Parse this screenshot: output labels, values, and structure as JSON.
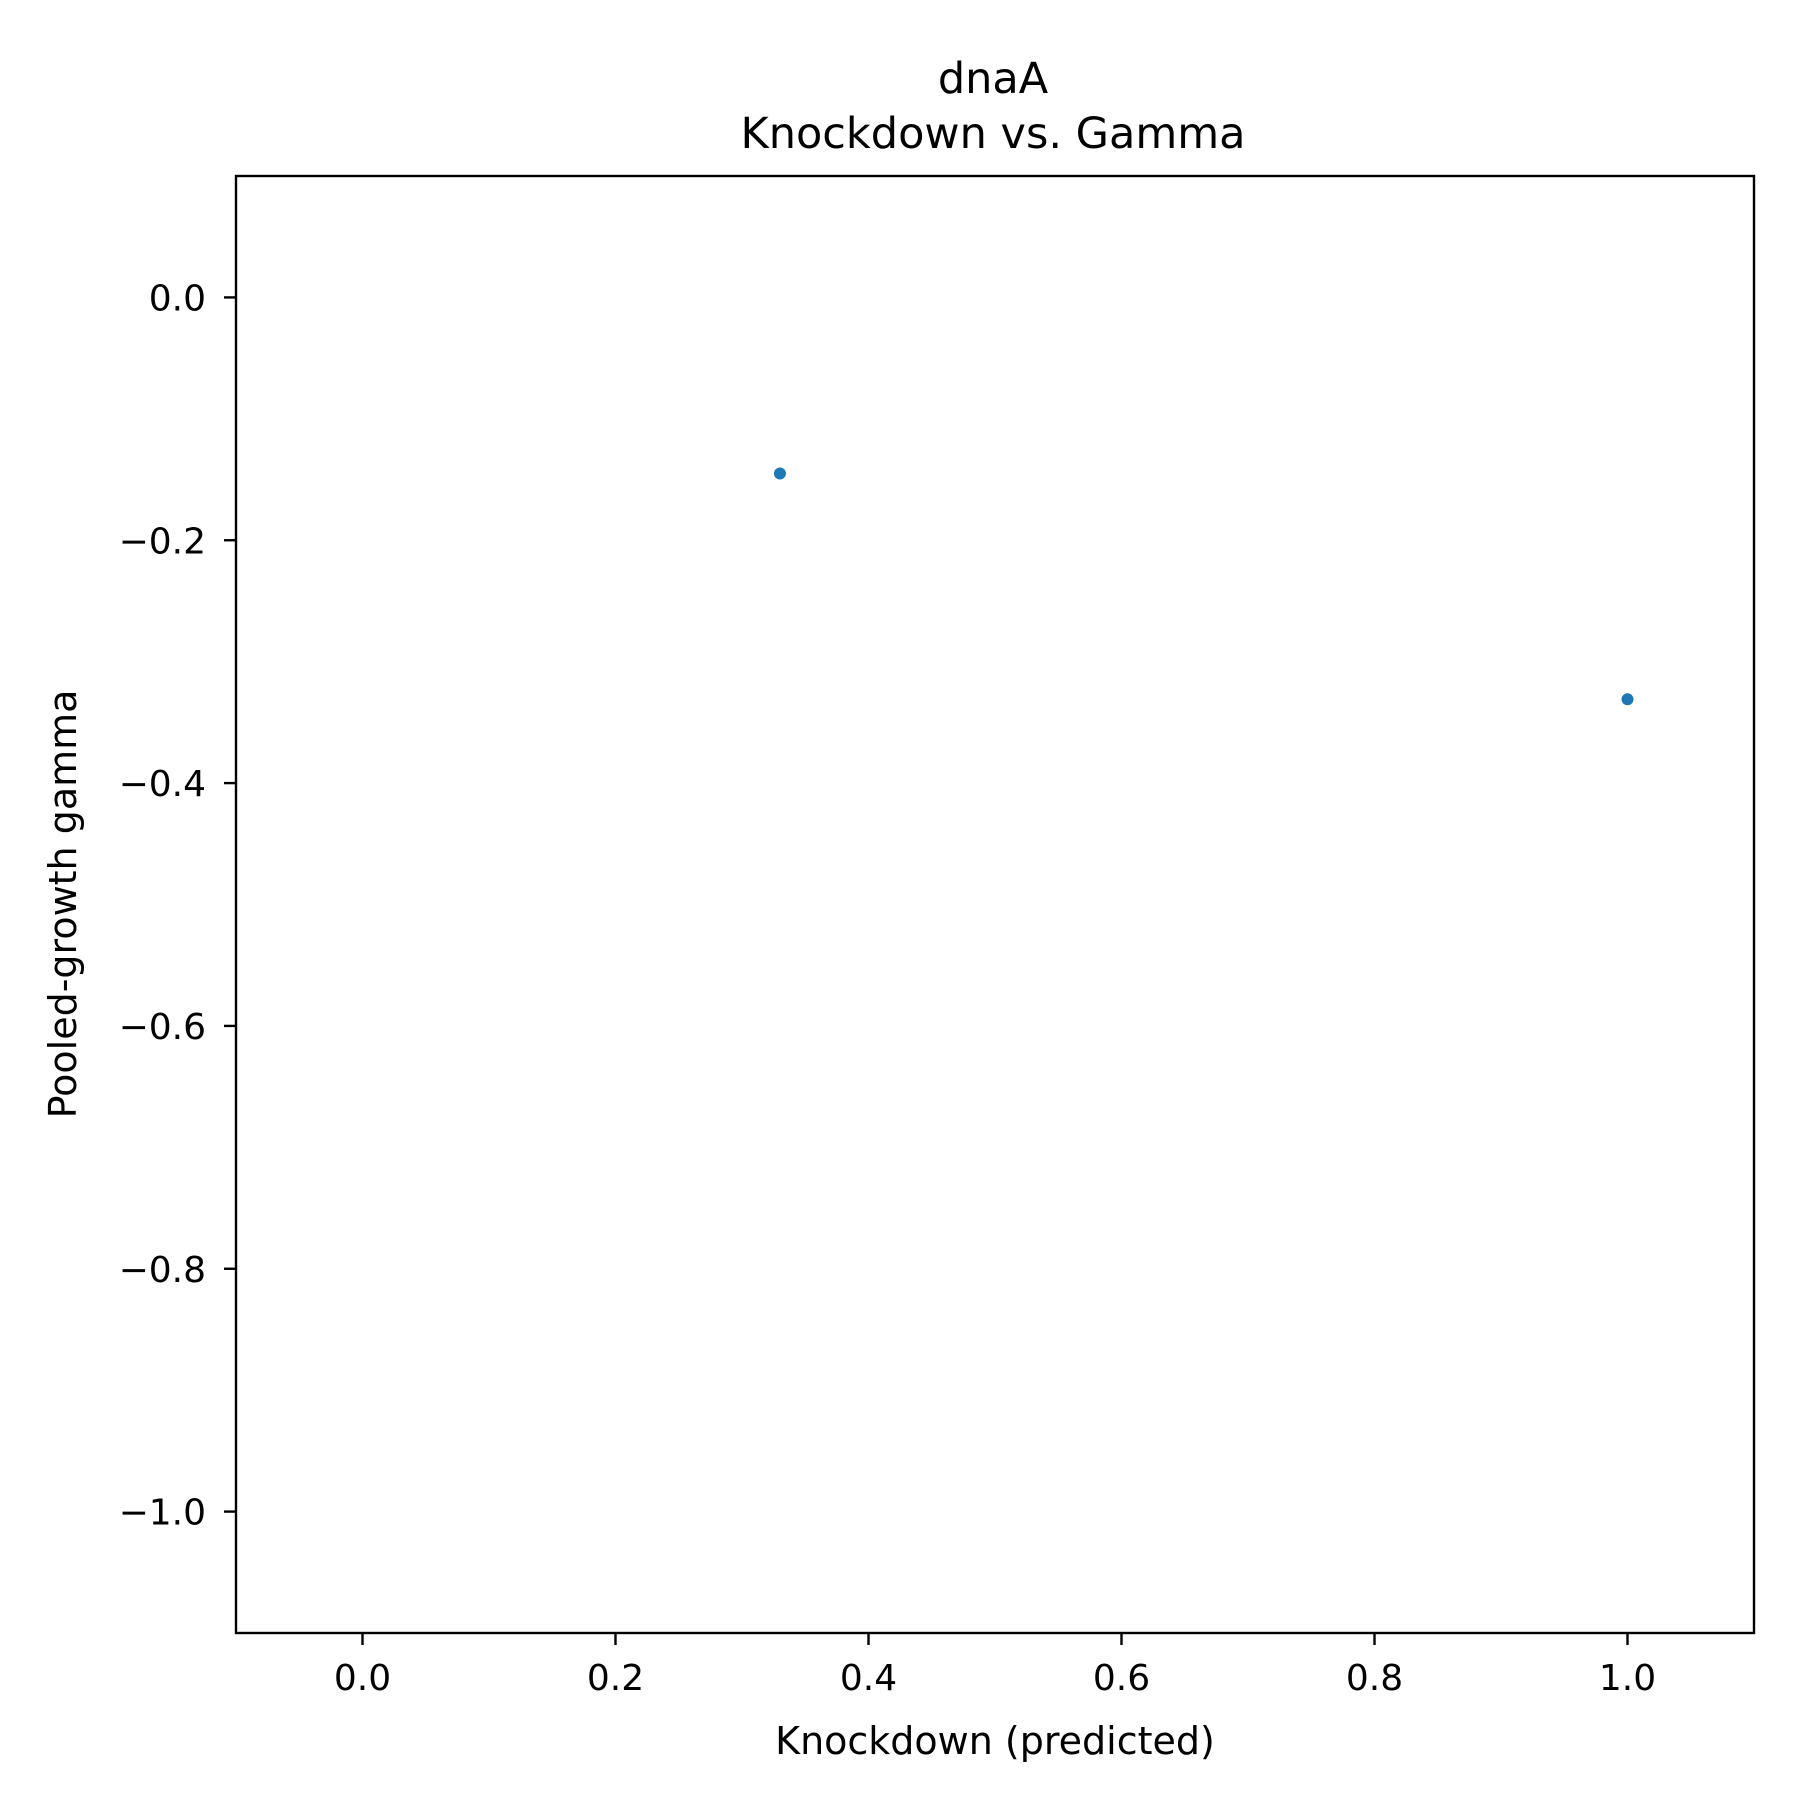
{
  "chart_data": {
    "type": "scatter",
    "title": "dnaA",
    "subtitle": "Knockdown vs. Gamma",
    "xlabel": "Knockdown (predicted)",
    "ylabel": "Pooled-growth gamma",
    "xlim": [
      -0.1,
      1.1
    ],
    "ylim": [
      -1.1,
      0.1
    ],
    "x_ticks": [
      0.0,
      0.2,
      0.4,
      0.6,
      0.8,
      1.0
    ],
    "x_tick_labels": [
      "0.0",
      "0.2",
      "0.4",
      "0.6",
      "0.8",
      "1.0"
    ],
    "y_ticks": [
      0.0,
      -0.2,
      -0.4,
      -0.6,
      -0.8,
      -1.0
    ],
    "y_tick_labels": [
      "0.0",
      "−0.2",
      "−0.4",
      "−0.6",
      "−0.8",
      "−1.0"
    ],
    "grid": false,
    "legend": "none",
    "point_color": "#1f77b4",
    "points": [
      {
        "x": 0.33,
        "y": -0.145
      },
      {
        "x": 1.0,
        "y": -0.331
      }
    ]
  }
}
